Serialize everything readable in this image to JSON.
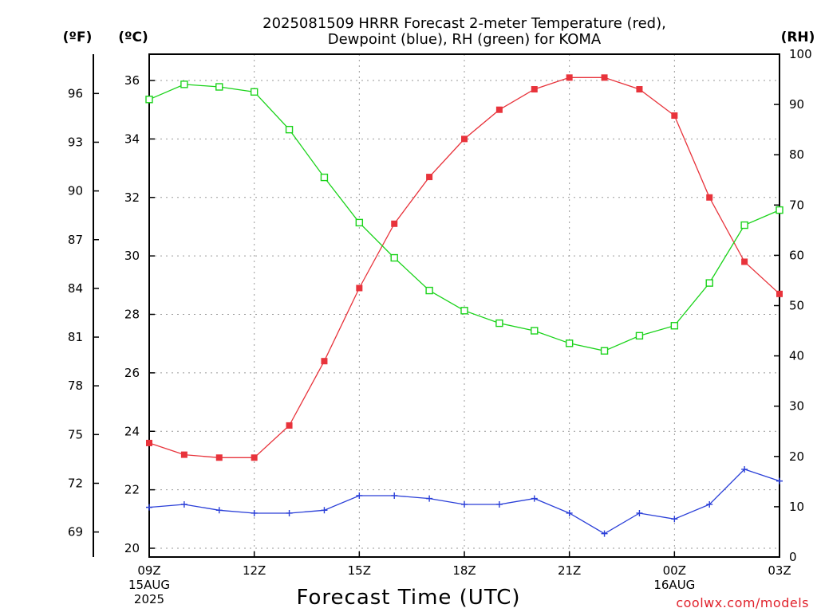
{
  "chart_data": {
    "type": "line",
    "title_line1": "2025081509 HRRR Forecast 2-meter Temperature (red),",
    "title_line2": "Dewpoint (blue), RH (green) for KOMA",
    "xlabel": "Forecast Time (UTC)",
    "credit": "coolwx.com/models",
    "unit_labels": {
      "fahrenheit": "(ºF)",
      "celsius": "(ºC)",
      "rh": "(RH)"
    },
    "x": [
      "09Z",
      "10Z",
      "11Z",
      "12Z",
      "13Z",
      "14Z",
      "15Z",
      "16Z",
      "17Z",
      "18Z",
      "19Z",
      "20Z",
      "21Z",
      "22Z",
      "23Z",
      "00Z",
      "01Z",
      "02Z",
      "03Z"
    ],
    "x_ticks": [
      {
        "i": 0,
        "lines": [
          "09Z",
          "15AUG",
          "2025"
        ]
      },
      {
        "i": 3,
        "lines": [
          "12Z"
        ]
      },
      {
        "i": 6,
        "lines": [
          "15Z"
        ]
      },
      {
        "i": 9,
        "lines": [
          "18Z"
        ]
      },
      {
        "i": 12,
        "lines": [
          "21Z"
        ]
      },
      {
        "i": 15,
        "lines": [
          "00Z",
          "16AUG"
        ]
      },
      {
        "i": 18,
        "lines": [
          "03Z"
        ]
      }
    ],
    "celsius_axis": {
      "min": 19.7,
      "max": 36.9,
      "ticks": [
        "20",
        "22",
        "24",
        "26",
        "28",
        "30",
        "32",
        "34",
        "36"
      ]
    },
    "fahrenheit_axis": {
      "ticks": [
        "69",
        "72",
        "75",
        "78",
        "81",
        "84",
        "87",
        "90",
        "93",
        "96"
      ]
    },
    "rh_axis": {
      "min": 0,
      "max": 100,
      "ticks": [
        "0",
        "10",
        "20",
        "30",
        "40",
        "50",
        "60",
        "70",
        "80",
        "90",
        "100"
      ]
    },
    "series": [
      {
        "name": "Temperature",
        "axis": "celsius",
        "color": "#e8333b",
        "marker": "filled-square",
        "values": [
          23.6,
          23.2,
          23.1,
          23.1,
          24.2,
          26.4,
          28.9,
          31.1,
          32.7,
          34.0,
          35.0,
          35.7,
          36.1,
          36.1,
          35.7,
          34.8,
          32.0,
          29.8,
          28.7
        ]
      },
      {
        "name": "Dewpoint",
        "axis": "celsius",
        "color": "#2a3fd8",
        "marker": "plus",
        "values": [
          21.4,
          21.5,
          21.3,
          21.2,
          21.2,
          21.3,
          21.8,
          21.8,
          21.7,
          21.5,
          21.5,
          21.7,
          21.2,
          20.5,
          21.2,
          21.0,
          21.5,
          22.7,
          22.3
        ]
      },
      {
        "name": "RH",
        "axis": "rh",
        "color": "#1ad31a",
        "marker": "open-square",
        "values": [
          91,
          94,
          93.5,
          92.5,
          85,
          75.5,
          66.5,
          59.5,
          53,
          49,
          46.5,
          45,
          42.5,
          41,
          44,
          46,
          54.5,
          66,
          69
        ]
      }
    ]
  }
}
